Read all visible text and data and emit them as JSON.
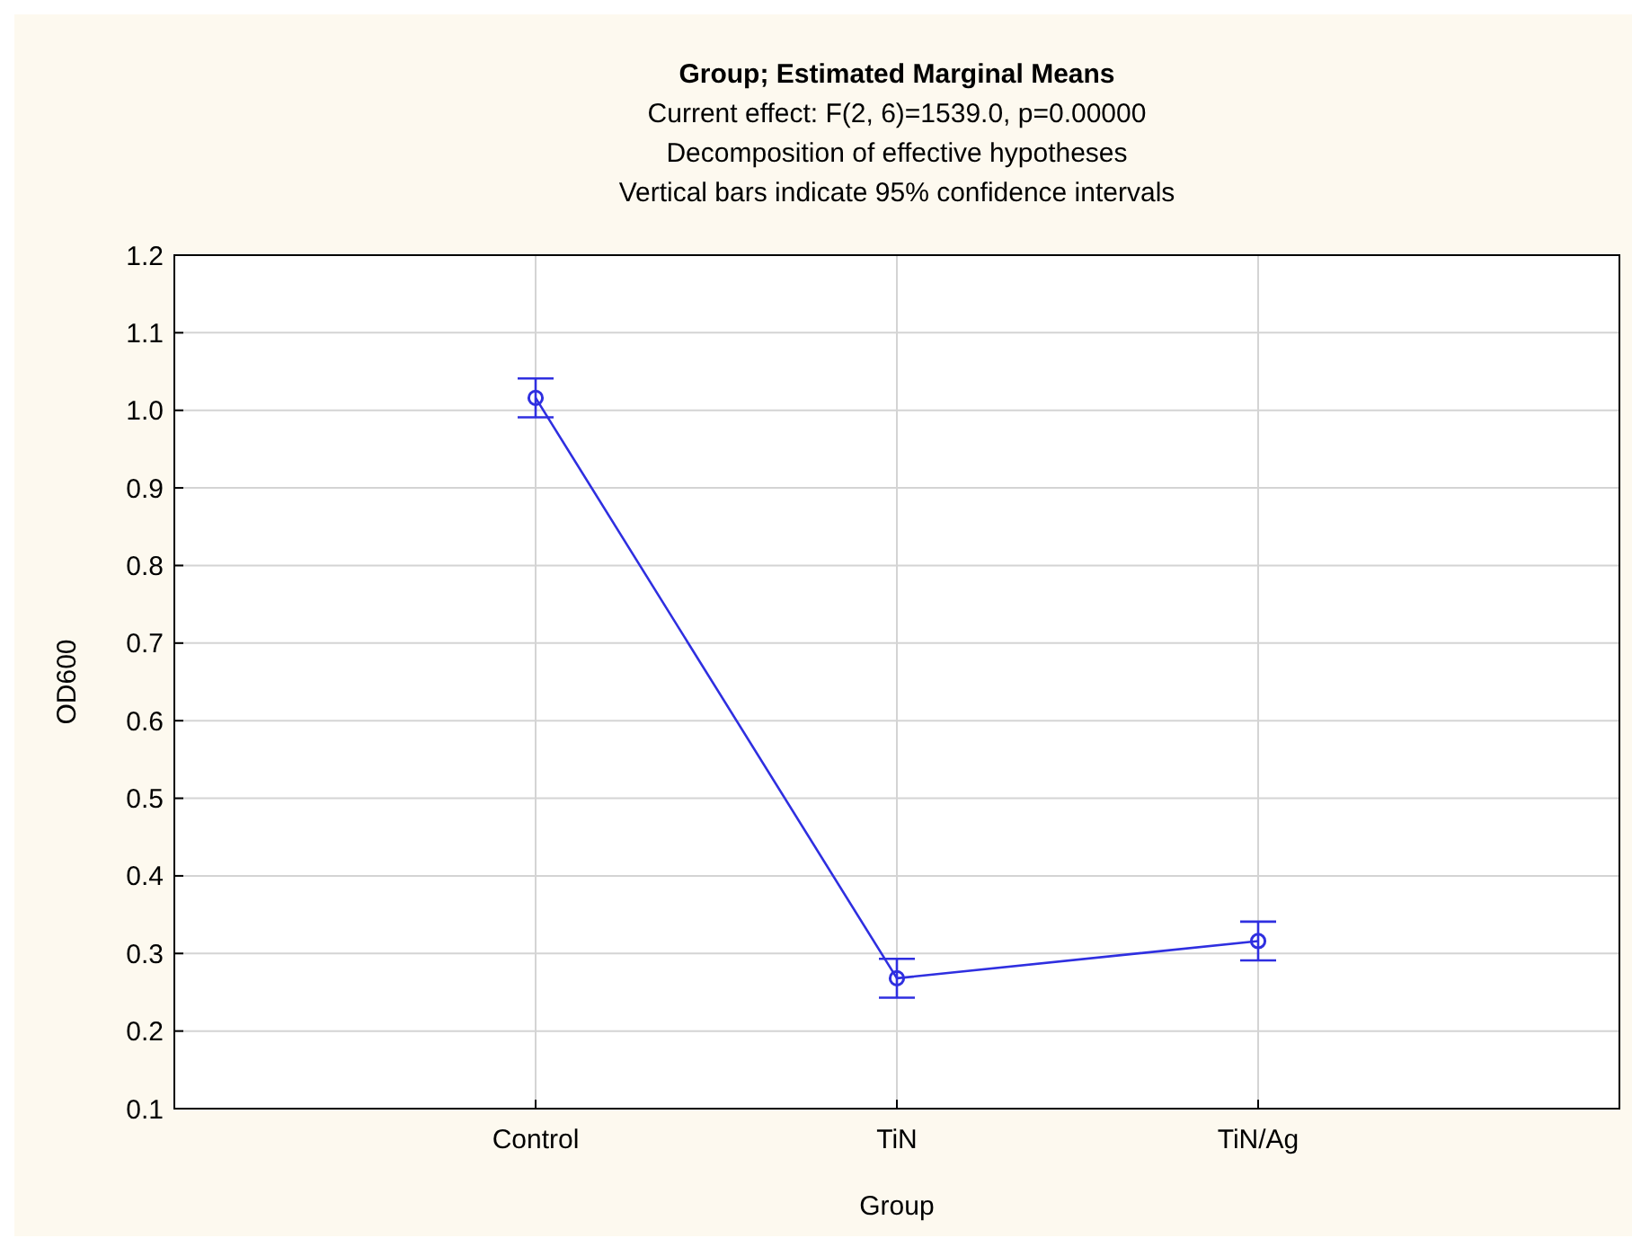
{
  "chart_data": {
    "type": "line",
    "title": "Group; Estimated Marginal Means",
    "subtitle": "Current effect: F(2, 6)=1539.0, p=0.00000\nDecomposition of effective hypotheses\nVertical bars indicate 95% confidence intervals",
    "xlabel": "Group",
    "ylabel": "OD600",
    "categories": [
      "Control",
      "TiN",
      "TiN/Ag"
    ],
    "series": [
      {
        "color": "#2f2fe0",
        "values": [
          1.016,
          0.268,
          0.316
        ],
        "errors": [
          0.025,
          0.025,
          0.025
        ]
      }
    ],
    "ylim": [
      0.1,
      1.2
    ],
    "yticks": [
      {
        "value": 0.1,
        "label": "0.1"
      },
      {
        "value": 0.2,
        "label": "0.2"
      },
      {
        "value": 0.3,
        "label": "0.3"
      },
      {
        "value": 0.4,
        "label": "0.4"
      },
      {
        "value": 0.5,
        "label": "0.5"
      },
      {
        "value": 0.6,
        "label": "0.6"
      },
      {
        "value": 0.7,
        "label": "0.7"
      },
      {
        "value": 0.8,
        "label": "0.8"
      },
      {
        "value": 0.9,
        "label": "0.9"
      },
      {
        "value": 1.0,
        "label": "1.0"
      },
      {
        "value": 1.1,
        "label": "1.1"
      },
      {
        "value": 1.2,
        "label": "1.2"
      }
    ],
    "grid": true,
    "marker": "circle",
    "line_style": "solid"
  }
}
